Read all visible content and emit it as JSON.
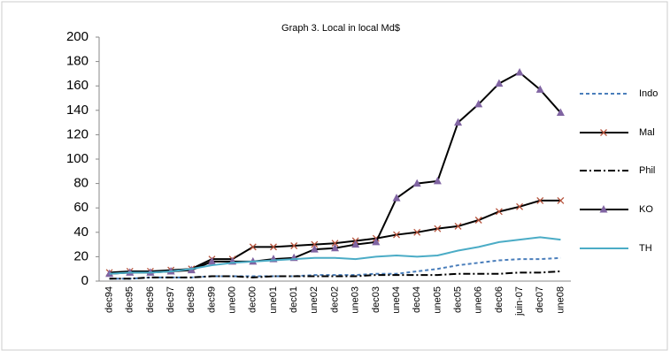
{
  "chart_data": {
    "type": "line",
    "title": "Graph 3. Local in local Md$",
    "categories": [
      "dec94",
      "dec95",
      "dec96",
      "dec97",
      "dec98",
      "dec99",
      "une00",
      "dec00",
      "une01",
      "dec01",
      "une02",
      "dec02",
      "une03",
      "dec03",
      "une04",
      "dec04",
      "une05",
      "dec05",
      "une06",
      "dec06",
      "juin-07",
      "dec07",
      "une08"
    ],
    "series": [
      {
        "name": "Indo",
        "color": "#4a7ebb",
        "dash": "4,3",
        "marker": "none",
        "values": [
          2,
          2,
          3,
          3,
          3,
          4,
          4,
          4,
          4,
          4,
          5,
          5,
          5,
          6,
          6,
          8,
          10,
          13,
          15,
          17,
          18,
          18,
          19
        ]
      },
      {
        "name": "Mal",
        "color": "#000000",
        "dash": "none",
        "marker": "x",
        "marker_color": "#b5523b",
        "values": [
          7,
          8,
          8,
          9,
          10,
          18,
          18,
          28,
          28,
          29,
          30,
          31,
          33,
          35,
          38,
          40,
          43,
          45,
          50,
          57,
          61,
          66,
          66
        ]
      },
      {
        "name": "Phil",
        "color": "#000000",
        "dash": "8,3,2,3",
        "marker": "none",
        "values": [
          2,
          2,
          3,
          3,
          3,
          4,
          4,
          3,
          4,
          4,
          4,
          4,
          4,
          5,
          5,
          5,
          5,
          6,
          6,
          6,
          7,
          7,
          8
        ]
      },
      {
        "name": "KO",
        "color": "#000000",
        "dash": "none",
        "marker": "triangle",
        "marker_color": "#8064a2",
        "values": [
          6,
          7,
          7,
          8,
          9,
          16,
          16,
          16,
          18,
          19,
          26,
          27,
          30,
          32,
          68,
          80,
          82,
          130,
          145,
          162,
          171,
          157,
          138
        ]
      },
      {
        "name": "TH",
        "color": "#4bacc6",
        "dash": "none",
        "marker": "none",
        "values": [
          6,
          7,
          7,
          8,
          10,
          13,
          15,
          16,
          17,
          18,
          19,
          19,
          18,
          20,
          21,
          20,
          21,
          25,
          28,
          32,
          34,
          36,
          34
        ]
      }
    ],
    "ylim": [
      0,
      200
    ],
    "yticks": [
      0,
      20,
      40,
      60,
      80,
      100,
      120,
      140,
      160,
      180,
      200
    ],
    "grid": false,
    "legend": "right"
  }
}
